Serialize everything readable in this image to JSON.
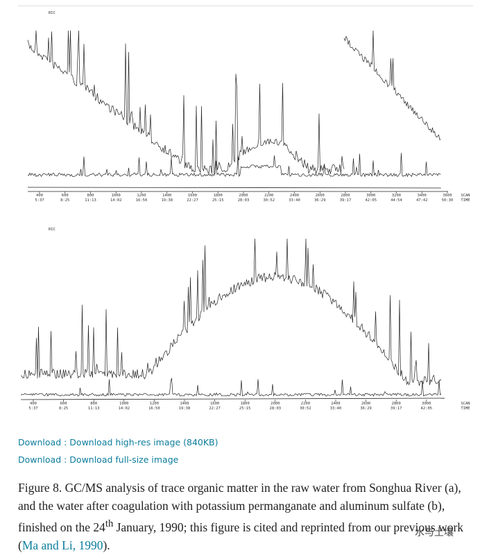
{
  "figure": {
    "panels": [
      {
        "ric": "RIC",
        "axis": [
          "SCAN",
          "TIME"
        ],
        "ticks": [
          [
            "400",
            "5:37"
          ],
          [
            "600",
            "8:25"
          ],
          [
            "800",
            "11:13"
          ],
          [
            "1000",
            "14:02"
          ],
          [
            "1200",
            "16:50"
          ],
          [
            "1400",
            "19:38"
          ],
          [
            "1600",
            "22:27"
          ],
          [
            "1800",
            "25:15"
          ],
          [
            "2000",
            "28:03"
          ],
          [
            "2200",
            "30:52"
          ],
          [
            "2400",
            "33:40"
          ],
          [
            "2600",
            "36:29"
          ],
          [
            "2800",
            "39:17"
          ],
          [
            "3000",
            "42:05"
          ],
          [
            "3200",
            "44:54"
          ],
          [
            "3400",
            "47:42"
          ],
          [
            "3600",
            "50:30"
          ]
        ]
      },
      {
        "ric": "RIC",
        "axis": [
          "SCAN",
          "TIME"
        ],
        "ticks": [
          [
            "400",
            "5:37"
          ],
          [
            "600",
            "8:25"
          ],
          [
            "800",
            "11:13"
          ],
          [
            "1000",
            "14:02"
          ],
          [
            "1200",
            "16:50"
          ],
          [
            "1400",
            "19:38"
          ],
          [
            "1600",
            "22:27"
          ],
          [
            "1800",
            "25:15"
          ],
          [
            "2000",
            "28:03"
          ],
          [
            "2200",
            "30:52"
          ],
          [
            "2400",
            "33:40"
          ],
          [
            "2600",
            "36:29"
          ],
          [
            "2800",
            "39:17"
          ],
          [
            "3000",
            "42:05"
          ]
        ]
      }
    ]
  },
  "links": [
    "Download : Download high-res image (840KB)",
    "Download : Download full-size image"
  ],
  "caption": {
    "before": "Figure 8. GC/MS analysis of trace organic matter in the raw water from Songhua River (a), and the water after coagulation with potassium permanganate and aluminum sulfate (b), finished on the 24",
    "sup": "th",
    "after": " January, 1990; this figure is cited and reprinted from our previous work (",
    "ref": "Ma and Li, 1990",
    "end": ")."
  },
  "watermark": "水与土壤"
}
